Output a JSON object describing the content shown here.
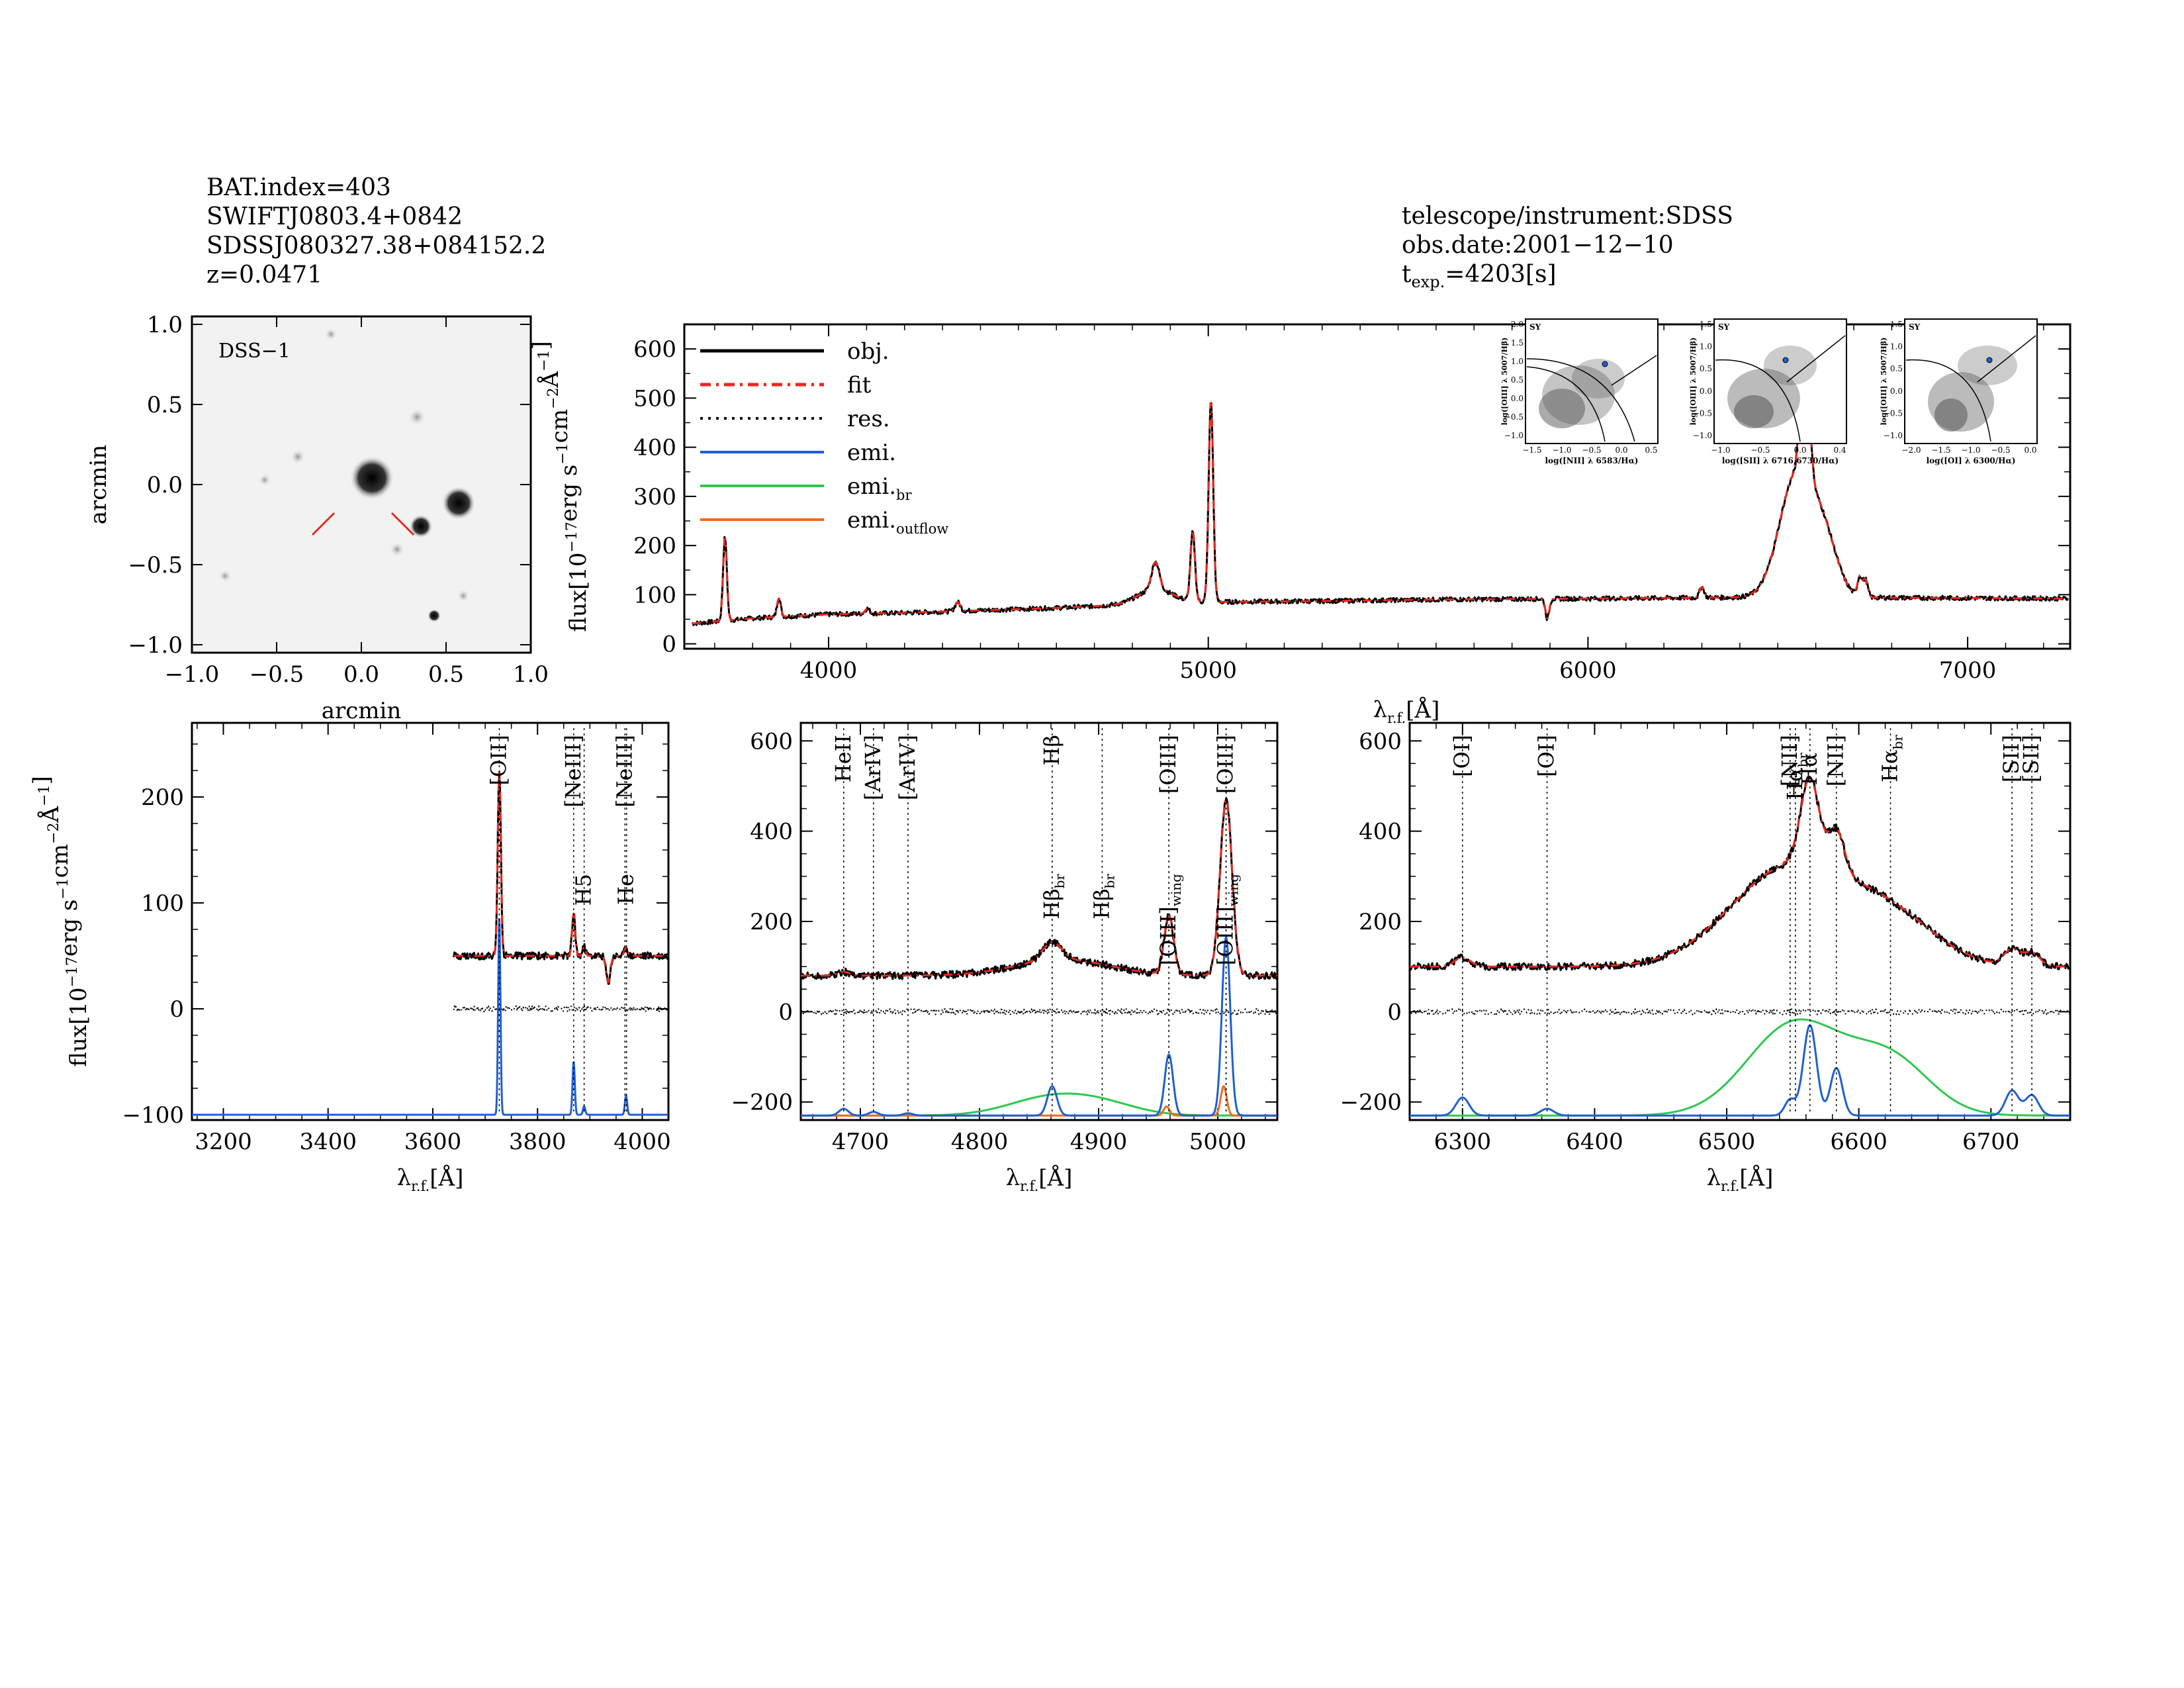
{
  "header_left": {
    "lines": [
      "BAT.index=403",
      "SWIFTJ0803.4+0842",
      "SDSSJ080327.38+084152.2",
      "z=0.0471"
    ]
  },
  "header_right": {
    "telescope": "telescope/instrument:SDSS",
    "obs_date": "obs.date:2001−12−10",
    "texp_main": "t",
    "texp_sub": "exp.",
    "texp_value": "=4203[s]"
  },
  "colors": {
    "obj": "#000000",
    "fit": "#e8281e",
    "res": "#000000",
    "emi": "#1f5fd1",
    "emi_br": "#2ec84e",
    "emi_outflow": "#f06a1e"
  },
  "image_panel": {
    "label": "DSS−1",
    "xlabel": "arcmin",
    "ylabel": "arcmin",
    "xticks": [
      "−1.0",
      "−0.5",
      "0.0",
      "0.5",
      "1.0"
    ],
    "yticks": [
      "1.0",
      "0.5",
      "0.0",
      "−0.5",
      "−1.0"
    ]
  },
  "legend": [
    {
      "label": "obj.",
      "sub": "",
      "style": "obj"
    },
    {
      "label": "fit",
      "sub": "",
      "style": "fit"
    },
    {
      "label": "res.",
      "sub": "",
      "style": "res"
    },
    {
      "label": "emi.",
      "sub": "",
      "style": "emi"
    },
    {
      "label": "emi.",
      "sub": "br",
      "style": "emi_br"
    },
    {
      "label": "emi.",
      "sub": "outflow",
      "style": "emi_outflow"
    }
  ],
  "axis_text": {
    "flux_main": "flux[10",
    "flux_exp": "−17",
    "flux_rest": "erg s",
    "flux_exp2": "−1",
    "flux_cm": "cm",
    "flux_exp3": "−2",
    "flux_A": "Å",
    "flux_exp4": "−1",
    "flux_close": "]",
    "lambda": "λ",
    "lambda_sub": "r.f.",
    "lambda_unit": "[Å]"
  },
  "bpt": [
    {
      "tag": "SY",
      "ylabel": "log([OIII] λ 5007/Hβ)",
      "xlabel": "log([NII] λ 6583/Hα)",
      "xticks": [
        "−1.5",
        "−1.0",
        "−0.5",
        "0.0",
        "0.5"
      ],
      "yticks": [
        "2.0",
        "1.5",
        "1.0",
        "0.5",
        "0.0",
        "−0.5",
        "−1.0"
      ]
    },
    {
      "tag": "SY",
      "ylabel": "log([OIII] λ 5007/Hβ)",
      "xlabel": "log([SII] λ 6716,6730/Hα)",
      "xticks": [
        "−1.0",
        "−0.5",
        "0.0",
        "0.4"
      ],
      "yticks": [
        "1.5",
        "1.0",
        "0.5",
        "0.0",
        "−0.5",
        "−1.0"
      ]
    },
    {
      "tag": "SY",
      "ylabel": "log([OIII] λ 5007/Hβ)",
      "xlabel": "log([OI] λ 6300/Hα)",
      "xticks": [
        "−2.0",
        "−1.5",
        "−1.0",
        "−0.5",
        "0.0"
      ],
      "yticks": [
        "1.5",
        "1.0",
        "0.5",
        "0.0",
        "−0.5",
        "−1.0"
      ]
    }
  ],
  "chart_data": [
    {
      "type": "line",
      "title": "",
      "xlim": [
        3620,
        7270
      ],
      "ylim": [
        -10,
        650
      ],
      "xticks": [
        4000,
        5000,
        6000,
        7000
      ],
      "yticks": [
        0,
        100,
        200,
        300,
        400,
        500,
        600
      ],
      "continuum": [
        [
          3620,
          40
        ],
        [
          3700,
          45
        ],
        [
          3800,
          52
        ],
        [
          4000,
          60
        ],
        [
          4200,
          63
        ],
        [
          4400,
          68
        ],
        [
          4600,
          73
        ],
        [
          4800,
          80
        ],
        [
          5000,
          85
        ],
        [
          5300,
          87
        ],
        [
          5600,
          90
        ],
        [
          6000,
          92
        ],
        [
          6500,
          95
        ],
        [
          7000,
          93
        ],
        [
          7270,
          92
        ]
      ],
      "lines": [
        {
          "center": 3727,
          "amp": 170,
          "sigma": 5
        },
        {
          "center": 3869,
          "amp": 38,
          "sigma": 5
        },
        {
          "center": 4102,
          "amp": 10,
          "sigma": 6
        },
        {
          "center": 4340,
          "amp": 18,
          "sigma": 7
        },
        {
          "center": 4861,
          "amp": 55,
          "sigma": 10
        },
        {
          "center": 4861,
          "amp": 30,
          "sigma": 45
        },
        {
          "center": 4959,
          "amp": 140,
          "sigma": 6
        },
        {
          "center": 5007,
          "amp": 410,
          "sigma": 6
        },
        {
          "center": 6300,
          "amp": 22,
          "sigma": 6
        },
        {
          "center": 6550,
          "amp": 250,
          "sigma": 45
        },
        {
          "center": 6563,
          "amp": 200,
          "sigma": 7
        },
        {
          "center": 6583,
          "amp": 110,
          "sigma": 7
        },
        {
          "center": 6624,
          "amp": 100,
          "sigma": 35
        },
        {
          "center": 6716,
          "amp": 40,
          "sigma": 6
        },
        {
          "center": 6731,
          "amp": 35,
          "sigma": 6
        },
        {
          "center": 5893,
          "amp": -40,
          "sigma": 5
        }
      ]
    },
    {
      "type": "line",
      "xlim": [
        3140,
        4050
      ],
      "ylim": [
        -105,
        270
      ],
      "xticks": [
        3200,
        3400,
        3600,
        3800,
        4000
      ],
      "yticks": [
        -100,
        0,
        100,
        200
      ],
      "data_start": 3640,
      "continuum": 50,
      "obj_lines": [
        {
          "center": 3727,
          "amp": 175,
          "sigma": 3
        },
        {
          "center": 3869,
          "amp": 40,
          "sigma": 3
        },
        {
          "center": 3889,
          "amp": 8,
          "sigma": 3
        },
        {
          "center": 3935,
          "amp": -25,
          "sigma": 4
        },
        {
          "center": 3969,
          "amp": 8,
          "sigma": 3
        }
      ],
      "emi_base": -100,
      "emi": [
        {
          "center": 3727,
          "amp": 185,
          "sigma": 2.2
        },
        {
          "center": 3869,
          "amp": 50,
          "sigma": 2.2
        },
        {
          "center": 3889,
          "amp": 8,
          "sigma": 2.2
        },
        {
          "center": 3969,
          "amp": 18,
          "sigma": 2.2
        }
      ],
      "markers": [
        {
          "x": 3727,
          "label": "[OII]",
          "color": "#000000",
          "pos": "top"
        },
        {
          "x": 3869,
          "label": "[NeIII]",
          "color": "#000000",
          "pos": "top"
        },
        {
          "x": 3889,
          "label": "H5",
          "color": "#e8281e",
          "pos": "mid"
        },
        {
          "x": 3967,
          "label": "[NeIII]",
          "color": "#000000",
          "pos": "top"
        },
        {
          "x": 3970,
          "label": "He",
          "color": "#000000",
          "pos": "mid"
        }
      ]
    },
    {
      "type": "line",
      "xlim": [
        4650,
        5050
      ],
      "ylim": [
        -240,
        640
      ],
      "xticks": [
        4700,
        4800,
        4900,
        5000
      ],
      "yticks": [
        -200,
        0,
        200,
        400,
        600
      ],
      "continuum": 80,
      "obj_lines": [
        {
          "center": 4861,
          "amp": 40,
          "sigma": 8
        },
        {
          "center": 4870,
          "amp": 35,
          "sigma": 40
        },
        {
          "center": 4959,
          "amp": 130,
          "sigma": 4
        },
        {
          "center": 5007,
          "amp": 390,
          "sigma": 5
        },
        {
          "center": 4686,
          "amp": 8,
          "sigma": 5
        }
      ],
      "emi_base": -230,
      "emi": [
        {
          "center": 4686,
          "amp": 15,
          "sigma": 4
        },
        {
          "center": 4711,
          "amp": 8,
          "sigma": 4
        },
        {
          "center": 4740,
          "amp": 5,
          "sigma": 4
        },
        {
          "center": 4861,
          "amp": 65,
          "sigma": 4
        },
        {
          "center": 4959,
          "amp": 135,
          "sigma": 3.5
        },
        {
          "center": 5007,
          "amp": 395,
          "sigma": 3.5
        }
      ],
      "emi_br": [
        {
          "center": 4860,
          "amp": 40,
          "sigma": 35
        },
        {
          "center": 4905,
          "amp": 20,
          "sigma": 30
        }
      ],
      "emi_outflow": [
        {
          "center": 4957,
          "amp": 20,
          "sigma": 2.5
        },
        {
          "center": 5005,
          "amp": 65,
          "sigma": 2.5
        }
      ],
      "markers": [
        {
          "x": 4686,
          "label": "HeII",
          "color": "#000000",
          "pos": "top"
        },
        {
          "x": 4711,
          "label": "[ArIV]",
          "color": "#e8281e",
          "pos": "top"
        },
        {
          "x": 4740,
          "label": "[ArIV]",
          "color": "#e8281e",
          "pos": "top"
        },
        {
          "x": 4861,
          "label": "Hβ",
          "color": "#000000",
          "pos": "top"
        },
        {
          "x": 4861,
          "label": "Hβ",
          "sub": "br",
          "color": "#000000",
          "pos": "mid"
        },
        {
          "x": 4903,
          "label": "Hβ",
          "sub": "br",
          "color": "#000000",
          "pos": "mid"
        },
        {
          "x": 4959,
          "label": "[OIII]",
          "color": "#000000",
          "pos": "top"
        },
        {
          "x": 4959,
          "label": "[OIII]",
          "sub": "wing",
          "color": "#000000",
          "pos": "mid"
        },
        {
          "x": 5007,
          "label": "[OIII]",
          "color": "#000000",
          "pos": "top"
        },
        {
          "x": 5007,
          "label": "[OIII]",
          "sub": "wing",
          "color": "#000000",
          "pos": "mid"
        }
      ]
    },
    {
      "type": "line",
      "xlim": [
        6260,
        6760
      ],
      "ylim": [
        -240,
        640
      ],
      "xticks": [
        6300,
        6400,
        6500,
        6600,
        6700
      ],
      "yticks": [
        -200,
        0,
        200,
        400,
        600
      ],
      "continuum": 100,
      "obj_lines": [
        {
          "center": 6300,
          "amp": 20,
          "sigma": 6
        },
        {
          "center": 6548,
          "amp": 220,
          "sigma": 45
        },
        {
          "center": 6563,
          "amp": 190,
          "sigma": 7
        },
        {
          "center": 6583,
          "amp": 95,
          "sigma": 6
        },
        {
          "center": 6625,
          "amp": 95,
          "sigma": 35
        },
        {
          "center": 6716,
          "amp": 35,
          "sigma": 6
        },
        {
          "center": 6731,
          "amp": 30,
          "sigma": 6
        }
      ],
      "emi_base": -230,
      "emi": [
        {
          "center": 6300,
          "amp": 40,
          "sigma": 5
        },
        {
          "center": 6364,
          "amp": 15,
          "sigma": 5
        },
        {
          "center": 6548,
          "amp": 35,
          "sigma": 4
        },
        {
          "center": 6563,
          "amp": 200,
          "sigma": 5
        },
        {
          "center": 6583,
          "amp": 105,
          "sigma": 4.5
        },
        {
          "center": 6716,
          "amp": 55,
          "sigma": 5
        },
        {
          "center": 6731,
          "amp": 45,
          "sigma": 5
        }
      ],
      "emi_br": [
        {
          "center": 6552,
          "amp": 205,
          "sigma": 36
        },
        {
          "center": 6624,
          "amp": 120,
          "sigma": 30
        }
      ],
      "markers": [
        {
          "x": 6300,
          "label": "[OI]",
          "color": "#000000",
          "pos": "top"
        },
        {
          "x": 6364,
          "label": "[OI]",
          "color": "#000000",
          "pos": "top"
        },
        {
          "x": 6548,
          "label": "[NII]",
          "color": "#000000",
          "pos": "top"
        },
        {
          "x": 6552,
          "label": "Hα",
          "sub": "br",
          "color": "#000000",
          "pos": "top2"
        },
        {
          "x": 6563,
          "label": "Hα",
          "color": "#000000",
          "pos": "top2"
        },
        {
          "x": 6583,
          "label": "[NII]",
          "color": "#000000",
          "pos": "top"
        },
        {
          "x": 6624,
          "label": "Hα",
          "sub": "br",
          "color": "#000000",
          "pos": "top"
        },
        {
          "x": 6716,
          "label": "[SII]",
          "color": "#000000",
          "pos": "top"
        },
        {
          "x": 6731,
          "label": "[SII]",
          "color": "#000000",
          "pos": "top"
        }
      ]
    }
  ]
}
